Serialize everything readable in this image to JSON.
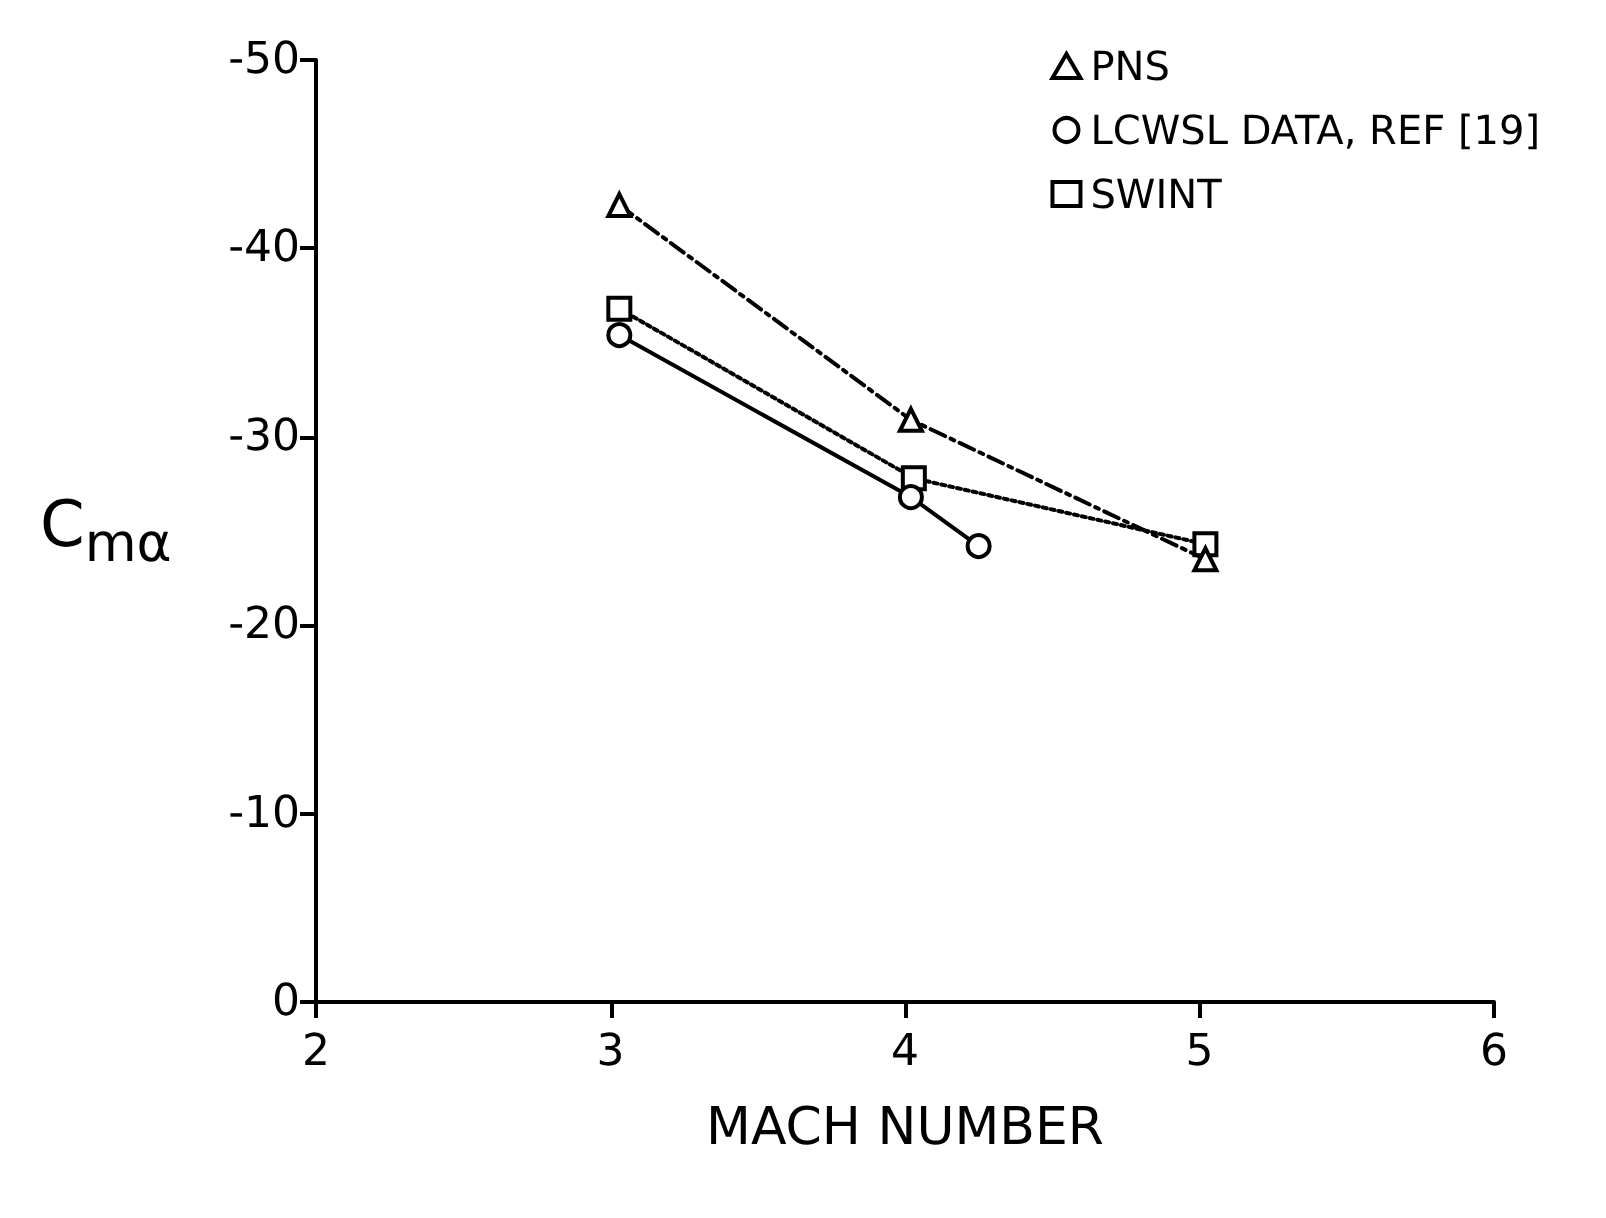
{
  "chart_data": {
    "type": "line",
    "xlabel": "MACH NUMBER",
    "ylabel": "C$_{mα}$",
    "xlim": [
      2,
      6
    ],
    "xticks": [
      2,
      3,
      4,
      5,
      6
    ],
    "ylim": [
      0,
      -50
    ],
    "yticks": [
      0,
      -10,
      -20,
      -30,
      -40,
      -50
    ],
    "grid": false,
    "legend": "top right",
    "series": [
      {
        "name": "PNS",
        "color": "#000000",
        "marker": "triangle",
        "line_style": "dashdot",
        "x": [
          3.03,
          4.02,
          5.02
        ],
        "values": [
          -42.3,
          -30.9,
          -23.5
        ]
      },
      {
        "name": "LCWSL DATA, REF [19]",
        "color": "#000000",
        "marker": "circle",
        "line_style": "solid",
        "x": [
          3.03,
          4.02,
          4.25
        ],
        "values": [
          -35.4,
          -26.8,
          -24.2
        ]
      },
      {
        "name": "SWINT",
        "color": "#000000",
        "marker": "square",
        "line_style": "dotted",
        "x": [
          3.03,
          4.03,
          5.02
        ],
        "values": [
          -36.8,
          -27.8,
          -24.3
        ]
      }
    ]
  }
}
